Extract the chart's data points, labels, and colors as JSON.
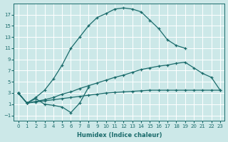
{
  "xlabel": "Humidex (Indice chaleur)",
  "bg_color": "#cce8e8",
  "grid_color": "#ffffff",
  "line_color": "#1a6b6b",
  "xlim": [
    -0.5,
    23.5
  ],
  "ylim": [
    -2,
    19
  ],
  "xticks": [
    0,
    1,
    2,
    3,
    4,
    5,
    6,
    7,
    8,
    9,
    10,
    11,
    12,
    13,
    14,
    15,
    16,
    17,
    18,
    19,
    20,
    21,
    22,
    23
  ],
  "yticks": [
    -1,
    1,
    3,
    5,
    7,
    9,
    11,
    13,
    15,
    17
  ],
  "curve1_x": [
    0,
    1,
    2,
    3,
    4,
    5,
    6,
    7,
    8,
    9,
    10,
    11,
    12,
    13,
    14,
    15,
    16,
    17,
    18,
    19
  ],
  "curve1_y": [
    3.0,
    1.2,
    2.2,
    3.5,
    5.5,
    8.0,
    11.0,
    13.0,
    15.0,
    16.5,
    17.2,
    18.0,
    18.2,
    18.0,
    17.5,
    16.0,
    14.5,
    12.5,
    11.5,
    11.0
  ],
  "curve2_x": [
    0,
    1,
    2,
    3,
    4,
    5,
    6,
    7,
    8,
    9,
    10,
    11,
    12,
    13,
    14,
    15,
    16,
    17,
    18,
    19,
    20,
    21,
    22,
    23
  ],
  "curve2_y": [
    3.0,
    1.2,
    1.5,
    1.8,
    2.2,
    2.8,
    3.2,
    3.8,
    4.3,
    4.8,
    5.3,
    5.8,
    6.2,
    6.7,
    7.2,
    7.5,
    7.8,
    8.0,
    8.3,
    8.5,
    7.5,
    6.5,
    5.8,
    3.5
  ],
  "curve3_x": [
    0,
    1,
    2,
    3,
    4,
    5,
    6,
    7,
    8,
    9,
    10,
    11,
    12,
    13,
    14,
    15,
    16,
    17,
    18,
    19,
    20,
    21,
    22,
    23
  ],
  "curve3_y": [
    3.0,
    1.2,
    1.4,
    1.6,
    1.8,
    2.0,
    2.2,
    2.4,
    2.6,
    2.8,
    3.0,
    3.1,
    3.2,
    3.3,
    3.4,
    3.5,
    3.5,
    3.5,
    3.5,
    3.5,
    3.5,
    3.5,
    3.5,
    3.5
  ],
  "curve4_x": [
    0,
    1,
    2,
    3,
    4,
    5,
    6,
    7,
    8
  ],
  "curve4_y": [
    3.0,
    1.2,
    2.0,
    1.0,
    0.8,
    0.5,
    -0.5,
    1.2,
    4.0
  ]
}
